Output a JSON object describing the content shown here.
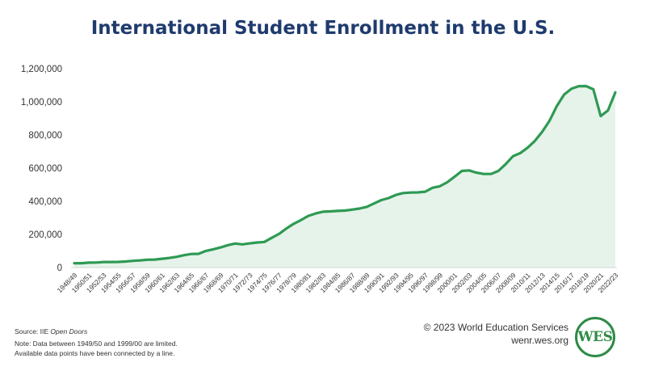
{
  "chart_data": {
    "type": "area",
    "title": "International Student Enrollment in the U.S.",
    "xlabel": "",
    "ylabel": "",
    "ylim": [
      0,
      1200000
    ],
    "yticks": [
      "0",
      "200,000",
      "400,000",
      "600,000",
      "800,000",
      "1,000,000",
      "1,200,000"
    ],
    "ytick_values": [
      0,
      200000,
      400000,
      600000,
      800000,
      1000000,
      1200000
    ],
    "grid": false,
    "legend": "none",
    "x": [
      "1948/49",
      "1949/50",
      "1950/51",
      "1951/52",
      "1952/53",
      "1953/54",
      "1954/55",
      "1955/56",
      "1956/57",
      "1957/58",
      "1958/59",
      "1959/60",
      "1960/61",
      "1961/62",
      "1962/63",
      "1963/64",
      "1964/65",
      "1965/66",
      "1966/67",
      "1967/68",
      "1968/69",
      "1969/70",
      "1970/71",
      "1971/72",
      "1972/73",
      "1973/74",
      "1974/75",
      "1975/76",
      "1976/77",
      "1977/78",
      "1978/79",
      "1979/80",
      "1980/81",
      "1981/82",
      "1982/83",
      "1983/84",
      "1984/85",
      "1985/86",
      "1986/87",
      "1987/88",
      "1988/89",
      "1989/90",
      "1990/91",
      "1991/92",
      "1992/93",
      "1993/94",
      "1994/95",
      "1995/96",
      "1996/97",
      "1997/98",
      "1998/99",
      "1999/00",
      "2000/01",
      "2001/02",
      "2002/03",
      "2003/04",
      "2004/05",
      "2005/06",
      "2006/07",
      "2007/08",
      "2008/09",
      "2009/10",
      "2010/11",
      "2011/12",
      "2012/13",
      "2013/14",
      "2014/15",
      "2015/16",
      "2016/17",
      "2017/18",
      "2018/19",
      "2019/20",
      "2020/21",
      "2021/22",
      "2022/23"
    ],
    "tick_labels_x": [
      "1948/49",
      "1950/51",
      "1952/53",
      "1954/55",
      "1956/57",
      "1958/59",
      "1960/61",
      "1962/63",
      "1964/65",
      "1966/67",
      "1968/69",
      "1970/71",
      "1972/73",
      "1974/75",
      "1976/77",
      "1978/79",
      "1980/81",
      "1982/83",
      "1984/85",
      "1986/87",
      "1988/89",
      "1990/91",
      "1992/93",
      "1994/95",
      "1996/97",
      "1998/99",
      "2000/01",
      "2002/03",
      "2004/05",
      "2006/07",
      "2008/09",
      "2010/11",
      "2012/13",
      "2014/15",
      "2016/17",
      "2018/19",
      "2020/21",
      "2022/23"
    ],
    "series": [
      {
        "values": [
          26433,
          26433,
          29813,
          30462,
          33675,
          33833,
          34232,
          36494,
          40666,
          43391,
          47245,
          48486,
          53107,
          58086,
          64705,
          74814,
          82045,
          82709,
          100262,
          110315,
          121362,
          134959,
          144708,
          140126,
          146097,
          151066,
          154580,
          179344,
          203068,
          235509,
          263938,
          286343,
          311882,
          326299,
          336985,
          338894,
          342113,
          343777,
          349609,
          356187,
          366354,
          386851,
          407529,
          419585,
          438618,
          449749,
          452635,
          453787,
          457984,
          481280,
          490933,
          514723,
          547867,
          582996,
          586323,
          572509,
          565039,
          564766,
          582984,
          623805,
          671616,
          690923,
          723277,
          764495,
          819644,
          886052,
          974926,
          1043839,
          1078822,
          1094792,
          1095299,
          1075496,
          914095,
          948519,
          1057188
        ]
      }
    ],
    "line_color": "#2e9a53",
    "fill_color": "#e6f3ea"
  },
  "footer": {
    "source_prefix": "Source: IIE ",
    "source_italic": "Open Doors",
    "note_line1": "Note: Data between 1949/50 and 1999/00 are limited.",
    "note_line2": "Available data points have been connected by a line.",
    "copyright": "© 2023 World Education Services",
    "website": "wenr.wes.org",
    "logo_text": "WES"
  }
}
